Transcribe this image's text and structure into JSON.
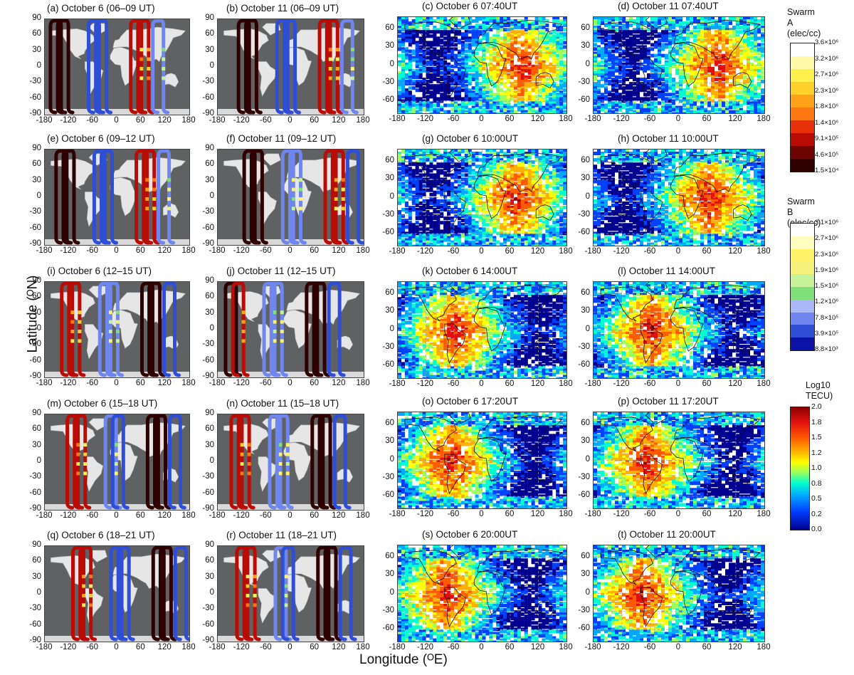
{
  "figure": {
    "ylabel": "Latitude (ᴼN)",
    "xlabel": "Longitude (ᴼE)",
    "orbit_panels": [
      {
        "label": "(a) October 6 (06–09 UT)"
      },
      {
        "label": "(b) October 11 (06–09 UT)"
      },
      {
        "label": "(e) October 6 (09–12 UT)"
      },
      {
        "label": "(f) October 11 (09–12 UT)"
      },
      {
        "label": "(i) October 6 (12–15 UT)"
      },
      {
        "label": "(j) October 11 (12–15 UT)"
      },
      {
        "label": "(m) October 6 (15–18 UT)"
      },
      {
        "label": "(n) October 11 (15–18 UT)"
      },
      {
        "label": "(q) October 6 (18–21 UT)"
      },
      {
        "label": "(r) October 11 (18–21 UT)"
      }
    ],
    "tec_panels": [
      {
        "label": "(c) October 6 07:40UT"
      },
      {
        "label": "(d) October 11 07:40UT"
      },
      {
        "label": "(g) October 6 10:00UT"
      },
      {
        "label": "(h) October 11 10:00UT"
      },
      {
        "label": "(k) October 6 14:00UT"
      },
      {
        "label": "(l) October 11 14:00UT"
      },
      {
        "label": "(o) October 6 17:20UT"
      },
      {
        "label": "(p) October 11 17:20UT"
      },
      {
        "label": "(s) October 6 20:00UT"
      },
      {
        "label": "(t) October 11 20:00UT"
      }
    ],
    "orbit_yticks": [
      "90",
      "60",
      "30",
      "0",
      "-30",
      "-60",
      "-90"
    ],
    "orbit_xticks": [
      "-180",
      "-120",
      "-60",
      "0",
      "60",
      "120",
      "180"
    ],
    "tec_yticks": [
      "60",
      "30",
      "0",
      "-30",
      "-60"
    ],
    "tec_xticks": [
      "-180",
      "-120",
      "-60",
      "0",
      "60",
      "120",
      "180"
    ],
    "colorbar_a": {
      "title_line1": "Swarm A",
      "title_line2": "(elec/cc)",
      "labels": [
        "3.6×10⁶",
        "3.2×10⁶",
        "2.7×10⁶",
        "2.3×10⁶",
        "1.8×10⁶",
        "1.4×10⁶",
        "9.1×10⁵",
        "4.6×10⁵",
        "1.5×10⁴"
      ],
      "colors": [
        "#ffffff",
        "#fff9a8",
        "#fff04d",
        "#ffcf2a",
        "#ffa21a",
        "#ff7710",
        "#e8300a",
        "#b80c05",
        "#6e0402",
        "#2e0000"
      ]
    },
    "colorbar_b": {
      "title_line1": "Swarm B",
      "title_line2": "(elec/cc)",
      "labels": [
        "3.1×10⁶",
        "2.7×10⁶",
        "2.3×10⁶",
        "1.9×10⁶",
        "1.5×10⁶",
        "1.2×10⁶",
        "7.8×10⁵",
        "3.9×10⁵",
        "8.8×10³"
      ],
      "colors": [
        "#ffffff",
        "#fffcc0",
        "#fff36a",
        "#f5f07a",
        "#c6f29a",
        "#7fe07a",
        "#a9b8f6",
        "#6e86ee",
        "#2f4ed6",
        "#0a12a8"
      ]
    },
    "colorbar_tec": {
      "title_line1": "Log10",
      "title_line2": "TECU)",
      "labels": [
        "2.0",
        "1.8",
        "1.5",
        "1.2",
        "1.0",
        "0.8",
        "0.5",
        "0.2",
        "0.0"
      ]
    }
  },
  "chart_data": {
    "type": "heatmap",
    "layout": "5 rows × 4 columns of world maps",
    "x_axis": {
      "label": "Longitude (ᴼE)",
      "range": [
        -180,
        180
      ]
    },
    "y_axis": {
      "label": "Latitude (ᴼN)",
      "range": [
        -90,
        90
      ]
    },
    "orbit_maps": "Swarm A and Swarm B satellite tracks coloured by electron density",
    "tec_maps": "global TEC maps, Log10 TECU colour scale from 0.0 to 2.0",
    "tec_high_region_center_lon": [
      80,
      80,
      70,
      60,
      -60,
      -60,
      -70,
      -70,
      -80,
      -80
    ]
  }
}
